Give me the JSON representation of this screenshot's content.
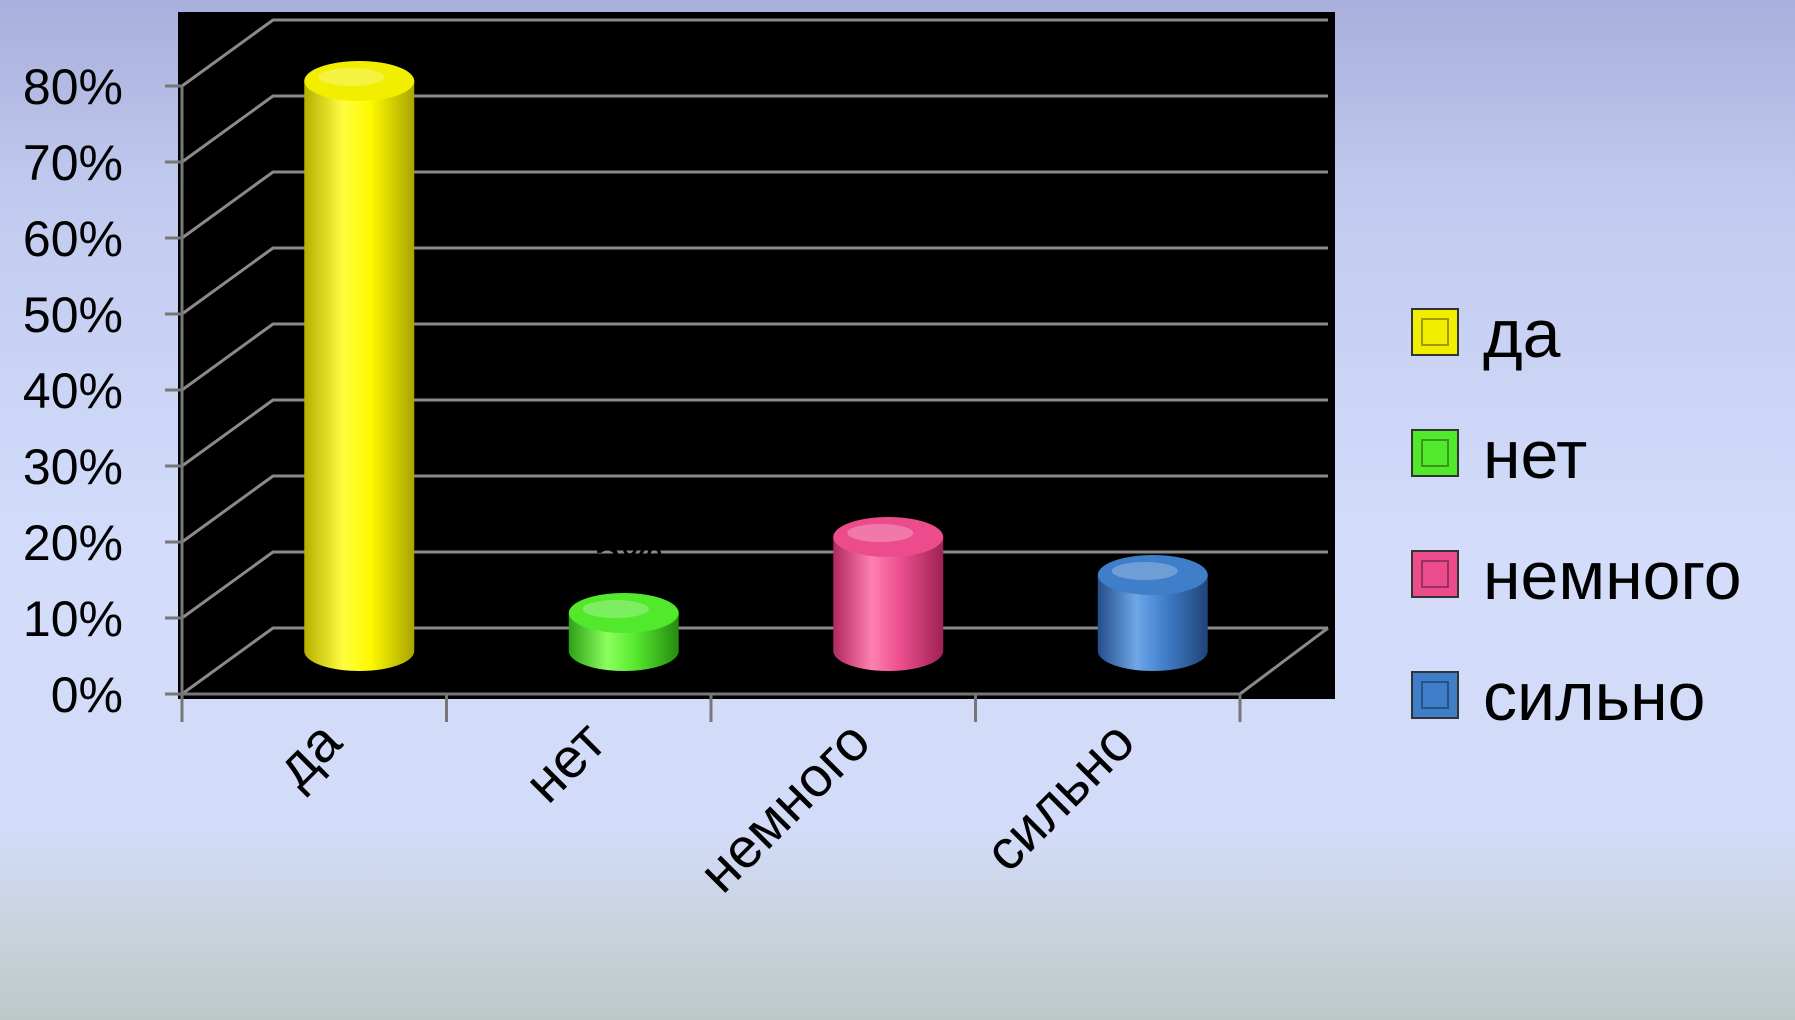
{
  "chart_data": {
    "type": "bar",
    "style": "3d-cylinder",
    "categories": [
      "да",
      "нет",
      "немного",
      "сильно"
    ],
    "values": [
      75,
      5,
      15,
      10
    ],
    "data_labels": [
      "",
      "5%",
      "",
      ""
    ],
    "colors": [
      "#f2ee00",
      "#52e82c",
      "#ec4c8c",
      "#3f7ec8"
    ],
    "y_ticks": [
      "0%",
      "10%",
      "20%",
      "30%",
      "40%",
      "50%",
      "60%",
      "70%",
      "80%"
    ],
    "ylim": [
      0,
      80
    ],
    "grid": true,
    "plot_background": "#000000",
    "legend_position": "right",
    "title": "",
    "xlabel": "",
    "ylabel": ""
  }
}
